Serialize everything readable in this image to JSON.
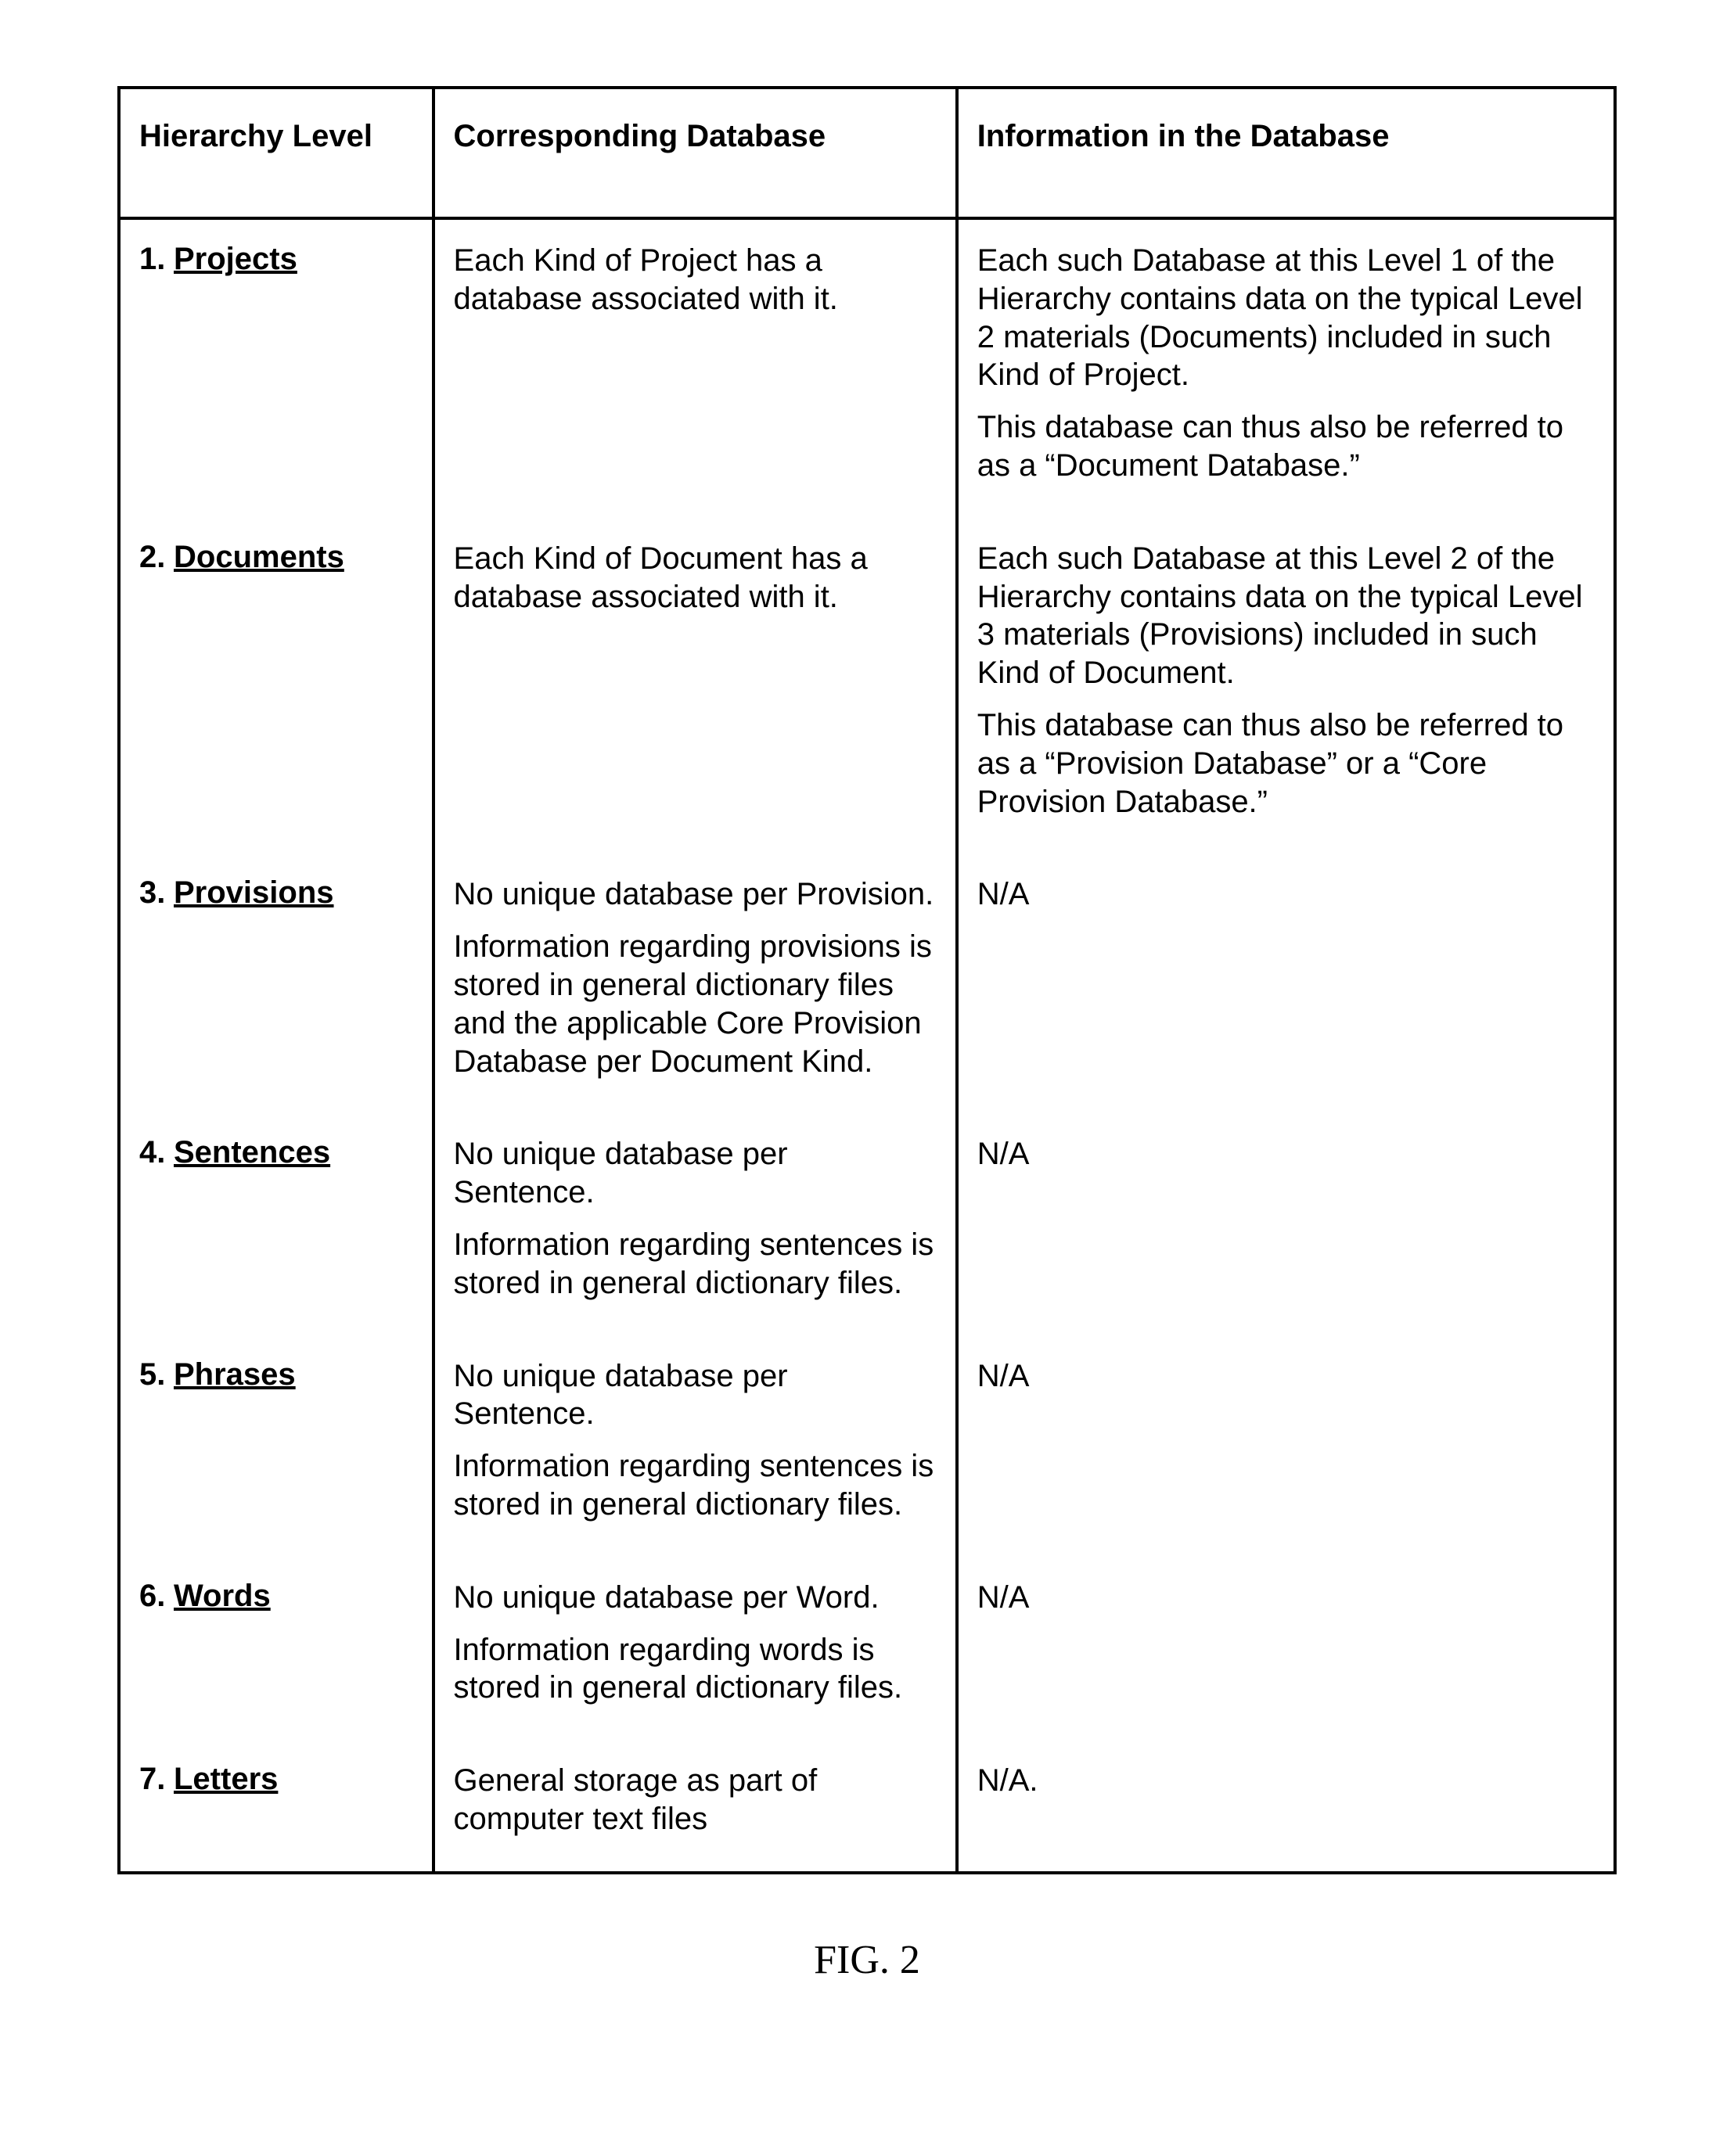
{
  "caption": "FIG. 2",
  "table": {
    "headers": [
      "Hierarchy Level",
      "Corresponding Database",
      "Information in the Database"
    ],
    "rows": [
      {
        "num": "1.",
        "level": "Projects",
        "db": [
          "Each Kind of Project has a database associated with it."
        ],
        "info": [
          "Each such Database at this Level 1 of the Hierarchy contains data on the typical Level 2 materials (Documents) included in such Kind of Project.",
          "This database can thus also be referred to as a “Document Database.”"
        ]
      },
      {
        "num": "2.",
        "level": "Documents",
        "db": [
          "Each Kind of Document has a database associated with it."
        ],
        "info": [
          "Each such Database at this Level 2 of the Hierarchy contains data on the typical Level 3 materials (Provisions) included in such Kind of Document.",
          "This database can thus also be referred to as a “Provision Database” or a “Core Provision Database.”"
        ]
      },
      {
        "num": "3.",
        "level": "Provisions",
        "db": [
          "No unique database per Provision.",
          "Information regarding provisions is stored in general dictionary files and the applicable Core Provision Database per Document Kind."
        ],
        "info": [
          "N/A"
        ]
      },
      {
        "num": "4.",
        "level": "Sentences",
        "db": [
          "No unique database per Sentence.",
          "Information regarding sentences is stored in general dictionary files."
        ],
        "info": [
          "N/A"
        ]
      },
      {
        "num": "5.",
        "level": "Phrases",
        "db": [
          "No unique database per Sentence.",
          "Information regarding sentences is stored in general dictionary files."
        ],
        "info": [
          "N/A"
        ]
      },
      {
        "num": "6.",
        "level": "Words",
        "db": [
          "No unique database per Word.",
          "Information regarding words is stored in general dictionary files."
        ],
        "info": [
          "N/A"
        ]
      },
      {
        "num": "7.",
        "level": "Letters",
        "db": [
          "General storage as part of computer text files"
        ],
        "info": [
          "N/A."
        ]
      }
    ]
  }
}
